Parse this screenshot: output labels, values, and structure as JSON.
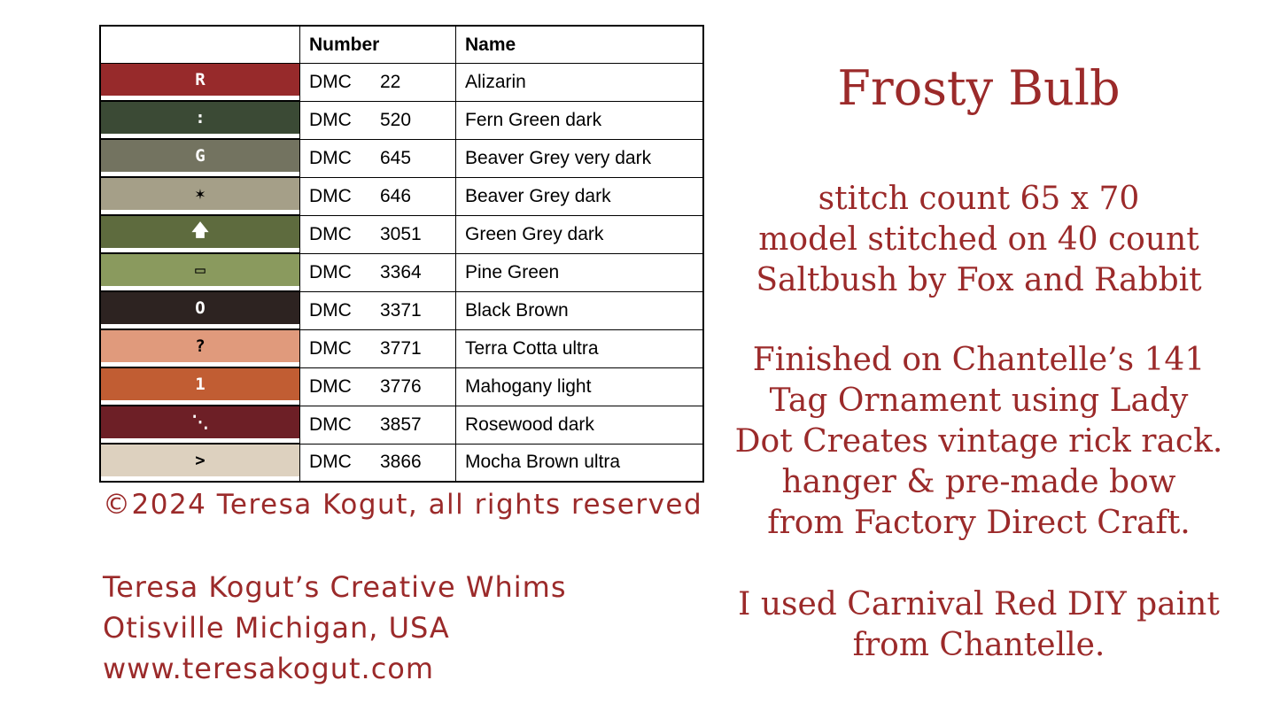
{
  "table": {
    "headers": [
      "",
      "Number",
      "Name"
    ],
    "rows": [
      {
        "symbol": "R",
        "number": "DMC",
        "code": "22",
        "name": "Alizarin",
        "color": "#972a2b",
        "symbol_color": "#ffffff"
      },
      {
        "symbol": ":",
        "number": "DMC",
        "code": "520",
        "name": "Fern Green dark",
        "color": "#3b4a35",
        "symbol_color": "#ffffff"
      },
      {
        "symbol": "G",
        "number": "DMC",
        "code": "645",
        "name": "Beaver Grey very dark",
        "color": "#737360",
        "symbol_color": "#ffffff"
      },
      {
        "symbol": "✶",
        "number": "DMC",
        "code": "646",
        "name": "Beaver Grey dark",
        "color": "#a59f88",
        "symbol_color": "#000000"
      },
      {
        "symbol": "🡅",
        "number": "DMC",
        "code": "3051",
        "name": "Green Grey dark",
        "color": "#5e6b3e",
        "symbol_color": "#ffffff"
      },
      {
        "symbol": "▭",
        "number": "DMC",
        "code": "3364",
        "name": "Pine Green",
        "color": "#8a9a5e",
        "symbol_color": "#000000"
      },
      {
        "symbol": "O",
        "number": "DMC",
        "code": "3371",
        "name": "Black Brown",
        "color": "#2d2321",
        "symbol_color": "#ffffff"
      },
      {
        "symbol": "?",
        "number": "DMC",
        "code": "3771",
        "name": "Terra Cotta ultra",
        "color": "#e09a7c",
        "symbol_color": "#000000"
      },
      {
        "symbol": "1",
        "number": "DMC",
        "code": "3776",
        "name": "Mahogany light",
        "color": "#c15d33",
        "symbol_color": "#ffffff"
      },
      {
        "symbol": "⋱",
        "number": "DMC",
        "code": "3857",
        "name": "Rosewood dark",
        "color": "#6d1f26",
        "symbol_color": "#ffffff"
      },
      {
        "symbol": ">",
        "number": "DMC",
        "code": "3866",
        "name": "Mocha Brown ultra",
        "color": "#ddd1bf",
        "symbol_color": "#000000"
      }
    ]
  },
  "copyright": "©2024 Teresa Kogut, all rights reserved",
  "address": [
    "Teresa Kogut’s Creative Whims",
    "Otisville Michigan, USA",
    "www.teresakogut.com"
  ],
  "title": "Frosty Bulb",
  "details": [
    "stitch count 65 x 70",
    "model stitched on 40 count",
    "Saltbush by Fox and Rabbit"
  ],
  "finishing": [
    "Finished on Chantelle’s 141",
    "Tag Ornament using Lady",
    "Dot Creates vintage rick rack.",
    "hanger & pre-made bow",
    "from Factory Direct Craft."
  ],
  "paint": [
    "I used Carnival Red DIY paint",
    "from Chantelle."
  ],
  "text_color": "#9b2a2a"
}
